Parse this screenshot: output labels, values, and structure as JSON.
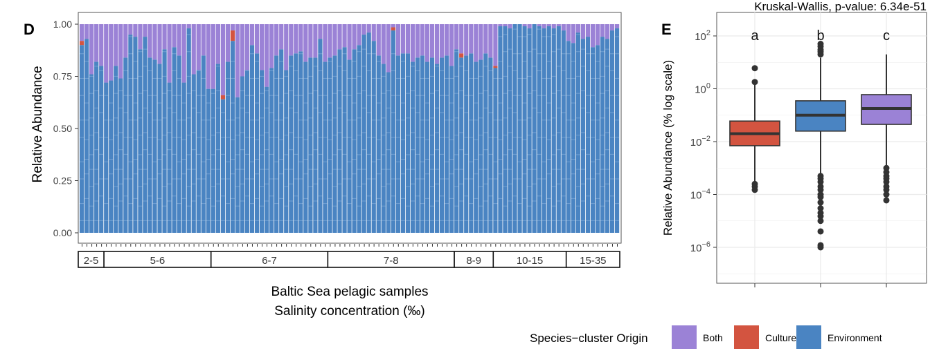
{
  "chart_data": [
    {
      "panel_label": "D",
      "type": "bar",
      "stacked": true,
      "xlabel_lines": [
        "Baltic Sea pelagic samples",
        "Salinity concentration (‰)"
      ],
      "ylabel": "Relative Abundance",
      "ylim": [
        0,
        1
      ],
      "yticks": [
        "0.00",
        "0.25",
        "0.50",
        "0.75",
        "1.00"
      ],
      "grid": false,
      "groups": [
        {
          "label": "2-5",
          "n": 5
        },
        {
          "label": "5-6",
          "n": 22
        },
        {
          "label": "6-7",
          "n": 24
        },
        {
          "label": "7-8",
          "n": 26
        },
        {
          "label": "8-9",
          "n": 8
        },
        {
          "label": "10-15",
          "n": 15
        },
        {
          "label": "15-35",
          "n": 11
        }
      ],
      "series": [
        {
          "name": "Environment",
          "values": [
            0.9,
            0.93,
            0.76,
            0.82,
            0.8,
            0.72,
            0.73,
            0.8,
            0.74,
            0.84,
            0.95,
            0.94,
            0.88,
            0.94,
            0.84,
            0.83,
            0.81,
            0.88,
            0.72,
            0.89,
            0.85,
            0.72,
            0.98,
            0.76,
            0.78,
            0.85,
            0.69,
            0.69,
            0.81,
            0.64,
            0.82,
            0.92,
            0.65,
            0.75,
            0.78,
            0.9,
            0.86,
            0.78,
            0.7,
            0.79,
            0.85,
            0.88,
            0.78,
            0.85,
            0.86,
            0.87,
            0.82,
            0.84,
            0.84,
            0.93,
            0.82,
            0.84,
            0.85,
            0.88,
            0.89,
            0.83,
            0.88,
            0.9,
            0.95,
            0.96,
            0.92,
            0.85,
            0.81,
            0.77,
            0.97,
            0.85,
            0.86,
            0.86,
            0.82,
            0.84,
            0.85,
            0.82,
            0.84,
            0.81,
            0.84,
            0.85,
            0.8,
            0.88,
            0.84,
            0.85,
            0.86,
            0.82,
            0.83,
            0.86,
            0.84,
            0.79,
            0.99,
            0.99,
            0.98,
            1.0,
            1.0,
            0.99,
            0.98,
            1.0,
            0.99,
            0.98,
            0.99,
            0.98,
            0.99,
            0.97,
            0.92,
            0.91,
            0.96,
            0.93,
            0.94,
            0.89,
            0.9,
            0.94,
            0.93,
            0.97,
            0.98
          ]
        },
        {
          "name": "Cultures",
          "values": [
            0.02,
            0,
            0,
            0,
            0,
            0,
            0,
            0,
            0,
            0,
            0,
            0,
            0,
            0,
            0,
            0,
            0,
            0,
            0,
            0,
            0,
            0,
            0,
            0,
            0,
            0,
            0,
            0,
            0,
            0.02,
            0,
            0.05,
            0,
            0,
            0,
            0,
            0,
            0,
            0,
            0,
            0,
            0,
            0,
            0,
            0,
            0,
            0,
            0,
            0,
            0,
            0,
            0,
            0,
            0,
            0,
            0,
            0,
            0,
            0,
            0,
            0,
            0,
            0,
            0,
            0.015,
            0,
            0,
            0,
            0,
            0,
            0,
            0,
            0,
            0,
            0,
            0,
            0,
            0,
            0.02,
            0,
            0,
            0,
            0,
            0,
            0,
            0.01,
            0,
            0,
            0,
            0,
            0,
            0,
            0,
            0,
            0,
            0,
            0,
            0,
            0,
            0,
            0,
            0,
            0,
            0,
            0,
            0,
            0,
            0,
            0,
            0,
            0
          ]
        },
        {
          "name": "Both",
          "values": "remainder to 1.00"
        }
      ]
    },
    {
      "panel_label": "E",
      "type": "box",
      "title": "Kruskal-Wallis, p-value: 6.34e-51",
      "ylabel": "Relative Abundance (% log scale)",
      "yscale": "log10",
      "ylim": [
        1e-07,
        500
      ],
      "yticks": [
        {
          "base": "10",
          "exp": "2",
          "v": 100
        },
        {
          "base": "10",
          "exp": "0",
          "v": 1
        },
        {
          "base": "10",
          "exp": "−2",
          "v": 0.01
        },
        {
          "base": "10",
          "exp": "−4",
          "v": 0.0001
        },
        {
          "base": "10",
          "exp": "−6",
          "v": 1e-06
        }
      ],
      "grid": true,
      "boxes": [
        {
          "name": "Cultures",
          "letter": "a",
          "q1": 0.007,
          "median": 0.02,
          "q3": 0.06,
          "whisker_low": 0.0003,
          "whisker_high": 1.5,
          "outliers": [
            6,
            1.8,
            0.00025,
            0.0002,
            0.00015
          ]
        },
        {
          "name": "Environment",
          "letter": "b",
          "q1": 0.025,
          "median": 0.1,
          "q3": 0.35,
          "whisker_low": 0.0006,
          "whisker_high": 15,
          "outliers": [
            50,
            40,
            30,
            25,
            20,
            0.0005,
            0.0004,
            0.0003,
            0.0002,
            0.00015,
            0.0001,
            8e-05,
            5e-05,
            3e-05,
            2e-05,
            1.5e-05,
            1e-05,
            4e-06,
            1.2e-06,
            1e-06
          ]
        },
        {
          "name": "Both",
          "letter": "c",
          "q1": 0.045,
          "median": 0.18,
          "q3": 0.6,
          "whisker_low": 0.0012,
          "whisker_high": 20,
          "outliers": [
            0.001,
            0.0007,
            0.0005,
            0.0004,
            0.0003,
            0.0002,
            0.00015,
            0.0001,
            6e-05
          ]
        }
      ]
    }
  ],
  "legend": {
    "title": "Species−cluster Origin",
    "items": [
      {
        "label": "Both",
        "color": "#9b82d6"
      },
      {
        "label": "Cultures",
        "color": "#d35440"
      },
      {
        "label": "Environment",
        "color": "#4a84c2"
      }
    ]
  },
  "colors": {
    "Both": "#9b82d6",
    "Cultures": "#d35440",
    "Environment": "#4a84c2"
  }
}
